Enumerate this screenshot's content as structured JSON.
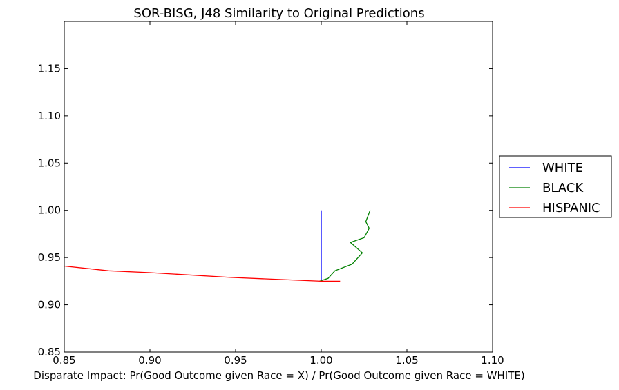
{
  "chart_data": {
    "type": "line",
    "title": "SOR-BISG, J48 Similarity to Original Predictions",
    "xlabel": "Disparate Impact: Pr(Good Outcome given Race = X) / Pr(Good Outcome given Race = WHITE)",
    "ylabel": "",
    "xlim": [
      0.85,
      1.1
    ],
    "ylim": [
      0.85,
      1.2
    ],
    "xticks": [
      "0.85",
      "0.90",
      "0.95",
      "1.00",
      "1.05",
      "1.10"
    ],
    "yticks": [
      "0.85",
      "0.90",
      "0.95",
      "1.00",
      "1.05",
      "1.10",
      "1.15"
    ],
    "grid": false,
    "legend_position": "outside-right",
    "series": [
      {
        "name": "WHITE",
        "color": "#0000ff",
        "points": [
          [
            1.0,
            1.0
          ],
          [
            1.0,
            0.925
          ]
        ]
      },
      {
        "name": "BLACK",
        "color": "#008000",
        "points": [
          [
            1.0285,
            1.0
          ],
          [
            1.026,
            0.988
          ],
          [
            1.028,
            0.981
          ],
          [
            1.025,
            0.971
          ],
          [
            1.017,
            0.966
          ],
          [
            1.024,
            0.955
          ],
          [
            1.018,
            0.943
          ],
          [
            1.008,
            0.936
          ],
          [
            1.004,
            0.928
          ],
          [
            0.999,
            0.925
          ]
        ]
      },
      {
        "name": "HISPANIC",
        "color": "#ff0000",
        "points": [
          [
            0.85,
            0.941
          ],
          [
            0.876,
            0.936
          ],
          [
            0.9,
            0.934
          ],
          [
            0.947,
            0.929
          ],
          [
            1.0,
            0.925
          ],
          [
            1.011,
            0.925
          ]
        ]
      }
    ]
  }
}
